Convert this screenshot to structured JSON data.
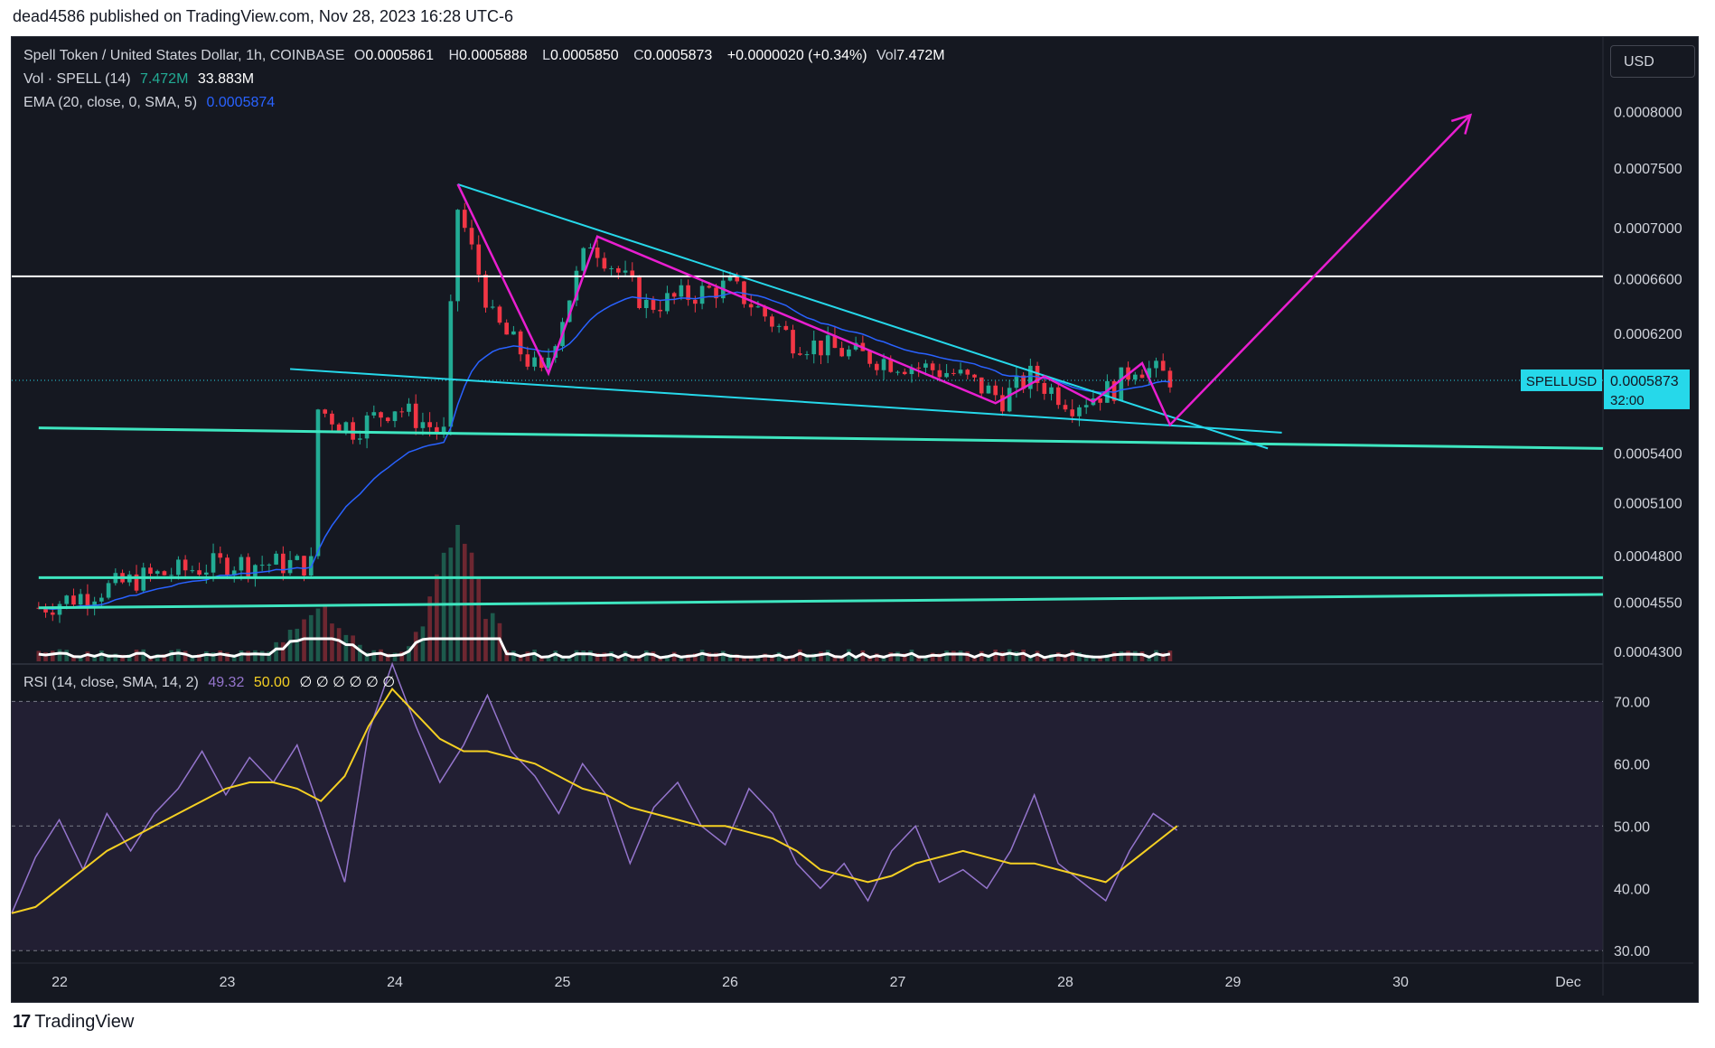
{
  "header": {
    "published_line": "dead4586 published on TradingView.com, Nov 28, 2023 16:28 UTC-6"
  },
  "legend": {
    "symbol": "Spell Token / United States Dollar, 1h, COINBASE",
    "o_label": "O",
    "o_value": "0.0005861",
    "h_label": "H",
    "h_value": "0.0005888",
    "l_label": "L",
    "l_value": "0.0005850",
    "c_label": "C",
    "c_value": "0.0005873",
    "change": "+0.0000020 (+0.34%)",
    "vol_label": "Vol",
    "vol_value": "7.472M",
    "volume_study": "Vol · SPELL (14)",
    "volume_study_v1": "7.472M",
    "volume_study_v2": "33.883M",
    "ema_study": "EMA (20, close, 0, SMA, 5)",
    "ema_value": "0.0005874",
    "rsi_study": "RSI (14, close, SMA, 14, 2)",
    "rsi_value": "49.32",
    "rsi_ma_value": "50.00",
    "rsi_extra": "∅ ∅ ∅ ∅ ∅ ∅"
  },
  "currency_button": "USD",
  "price_tag": {
    "symbol": "SPELLUSD",
    "price": "0.0005873",
    "countdown": "32:00"
  },
  "footer": {
    "brand": "TradingView",
    "logo_mark": "17"
  },
  "colors": {
    "background": "#151821",
    "up": "#22ab94",
    "down": "#f23645",
    "ema": "#2962ff",
    "trendline": "#26d8ea",
    "pattern": "#e91ed0",
    "support": "#3ee6c0",
    "rsi": "#9575cd",
    "rsi_ma": "#f5d023",
    "volume_ma": "#ffffff"
  },
  "chart_data": [
    {
      "type": "candlestick",
      "title": "Spell Token / United States Dollar, 1h, COINBASE",
      "x_ticks": [
        "22",
        "23",
        "24",
        "25",
        "26",
        "27",
        "28",
        "29",
        "30",
        "Dec"
      ],
      "y_ticks": [
        "0.0008000",
        "0.0007500",
        "0.0007000",
        "0.0006600",
        "0.0006200",
        "0.0005400",
        "0.0005100",
        "0.0004800",
        "0.0004550",
        "0.0004300"
      ],
      "ylim": [
        0.000425,
        0.00082
      ],
      "y_scale": "log",
      "grid": false,
      "last_price": 0.0005873,
      "ema_last": 0.0005874,
      "price_path": [
        {
          "x": "Nov 21 21:00",
          "y": 0.000452
        },
        {
          "x": "Nov 22 12:00",
          "y": 0.000468
        },
        {
          "x": "Nov 23 00:00",
          "y": 0.000476
        },
        {
          "x": "Nov 23 12:00",
          "y": 0.000475
        },
        {
          "x": "Nov 23 13:00",
          "y": 0.000568
        },
        {
          "x": "Nov 23 18:00",
          "y": 0.000555
        },
        {
          "x": "Nov 24 00:00",
          "y": 0.00057
        },
        {
          "x": "Nov 24 07:00",
          "y": 0.000552
        },
        {
          "x": "Nov 24 09:00",
          "y": 0.000716
        },
        {
          "x": "Nov 24 14:00",
          "y": 0.00063
        },
        {
          "x": "Nov 24 21:00",
          "y": 0.00059
        },
        {
          "x": "Nov 25 04:00",
          "y": 0.00069
        },
        {
          "x": "Nov 25 12:00",
          "y": 0.00064
        },
        {
          "x": "Nov 26 00:00",
          "y": 0.000655
        },
        {
          "x": "Nov 26 09:00",
          "y": 0.000615
        },
        {
          "x": "Nov 26 18:00",
          "y": 0.000605
        },
        {
          "x": "Nov 27 08:00",
          "y": 0.000592
        },
        {
          "x": "Nov 27 15:00",
          "y": 0.000575
        },
        {
          "x": "Nov 27 19:00",
          "y": 0.00059
        },
        {
          "x": "Nov 28 01:00",
          "y": 0.000572
        },
        {
          "x": "Nov 28 07:00",
          "y": 0.000582
        },
        {
          "x": "Nov 28 10:00",
          "y": 0.000598
        },
        {
          "x": "Nov 28 16:00",
          "y": 0.0005873
        }
      ],
      "drawings": {
        "resistance_level": 0.000662,
        "support_lines": [
          {
            "from": {
              "x": "Nov 21 21:00",
              "y": 0.000556
            },
            "to": {
              "x": "Dec 1 05:00",
              "y": 0.000543
            }
          },
          {
            "from": {
              "x": "Nov 21 21:00",
              "y": 0.000468
            },
            "to": {
              "x": "Dec 1 05:00",
              "y": 0.000468
            }
          },
          {
            "from": {
              "x": "Nov 21 21:00",
              "y": 0.000452
            },
            "to": {
              "x": "Dec 1 05:00",
              "y": 0.000459
            }
          }
        ],
        "wedge_upper": {
          "from": {
            "x": "Nov 24 09:00",
            "y": 0.000736
          },
          "to": {
            "x": "Nov 29 05:00",
            "y": 0.000543
          }
        },
        "wedge_lower": {
          "from": {
            "x": "Nov 23 09:00",
            "y": 0.000595
          },
          "to": {
            "x": "Nov 29 07:00",
            "y": 0.000553
          }
        },
        "projection_path": [
          {
            "x": "Nov 24 09:00",
            "y": 0.000736
          },
          {
            "x": "Nov 24 22:00",
            "y": 0.000592
          },
          {
            "x": "Nov 25 05:00",
            "y": 0.000693
          },
          {
            "x": "Nov 27 14:00",
            "y": 0.000572
          },
          {
            "x": "Nov 27 21:00",
            "y": 0.00059
          },
          {
            "x": "Nov 28 04:00",
            "y": 0.000573
          },
          {
            "x": "Nov 28 11:00",
            "y": 0.000599
          },
          {
            "x": "Nov 28 15:00",
            "y": 0.000558
          },
          {
            "x": "Nov 30 10:00",
            "y": 0.000797
          }
        ]
      }
    },
    {
      "type": "bar",
      "name": "Vol · SPELL (14)",
      "values_last": [
        "7.472M",
        "33.883M"
      ],
      "peaks": [
        {
          "x": "Nov 23 13:00",
          "height_fraction": 0.55
        },
        {
          "x": "Nov 24 09:00",
          "height_fraction": 1.0
        }
      ]
    },
    {
      "type": "line",
      "name": "RSI (14, close, SMA, 14, 2)",
      "y_ticks": [
        "70.00",
        "60.00",
        "50.00",
        "40.00",
        "30.00"
      ],
      "ylim": [
        28,
        76
      ],
      "levels": [
        70,
        50,
        30
      ],
      "series": [
        {
          "name": "RSI",
          "values": [
            36,
            45,
            51,
            43,
            52,
            46,
            52,
            56,
            62,
            55,
            61,
            57,
            63,
            52,
            41,
            65,
            76,
            66,
            57,
            63,
            71,
            62,
            58,
            52,
            60,
            55,
            44,
            53,
            57,
            50,
            47,
            56,
            52,
            44,
            40,
            44,
            38,
            46,
            50,
            41,
            43,
            40,
            46,
            55,
            44,
            41,
            38,
            46,
            52,
            49.32
          ]
        },
        {
          "name": "RSI-based MA",
          "values": [
            36,
            37,
            40,
            43,
            46,
            48,
            50,
            52,
            54,
            56,
            57,
            57,
            56,
            54,
            58,
            66,
            72,
            68,
            64,
            62,
            62,
            61,
            60,
            58,
            56,
            55,
            53,
            52,
            51,
            50,
            50,
            49,
            48,
            46,
            43,
            42,
            41,
            42,
            44,
            45,
            46,
            45,
            44,
            44,
            43,
            42,
            41,
            44,
            47,
            50.0
          ]
        }
      ]
    }
  ]
}
